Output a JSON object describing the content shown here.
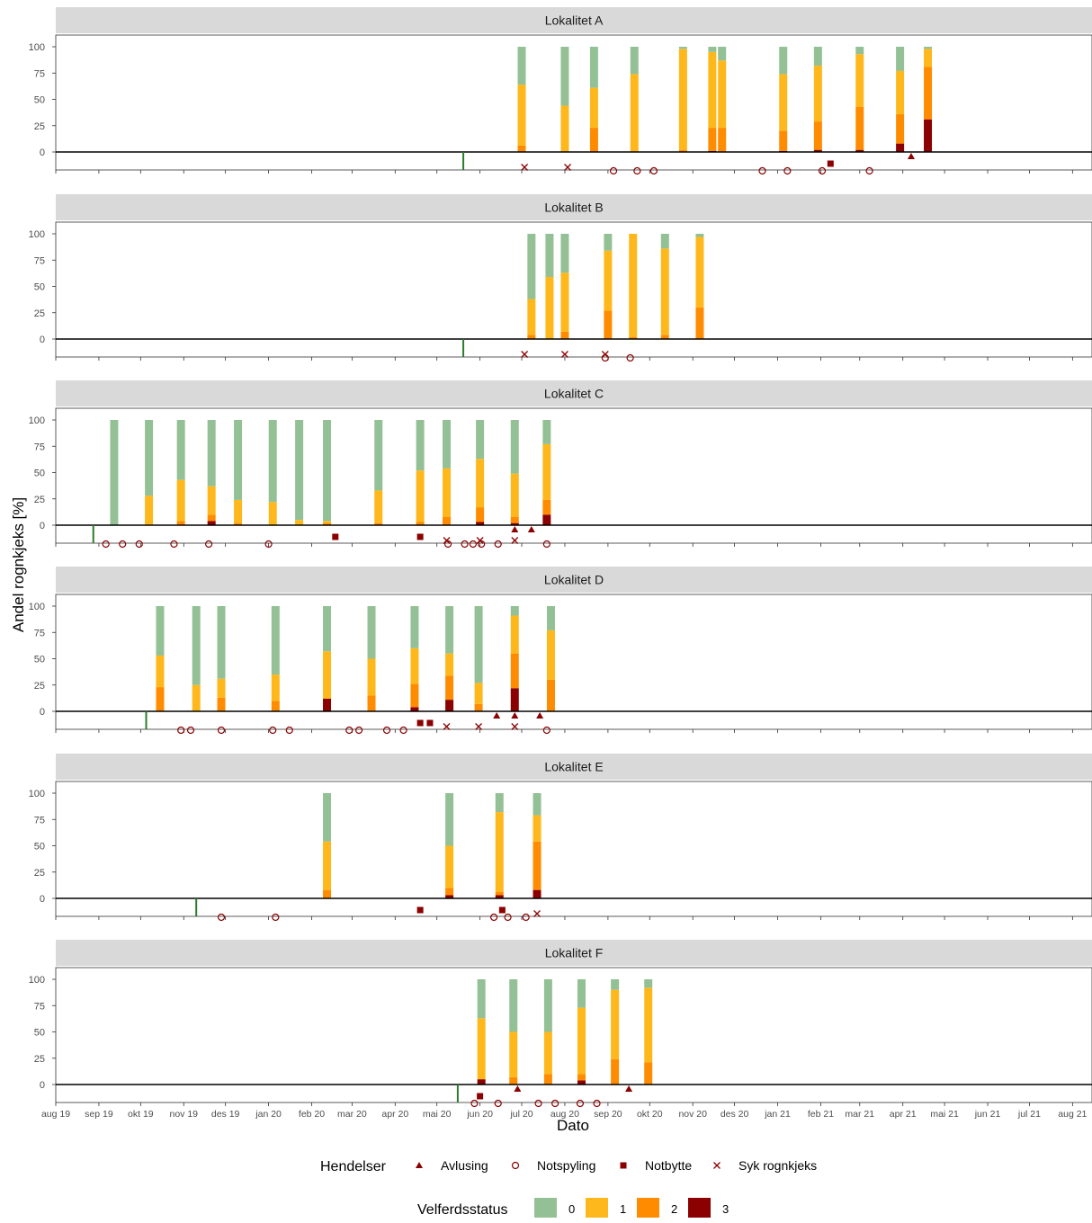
{
  "chart_data": {
    "type": "bar",
    "stacked": true,
    "xlabel": "Dato",
    "ylabel": "Andel rognkjeks [%]",
    "ylim": [
      0,
      100
    ],
    "yticks": [
      0,
      25,
      50,
      75,
      100
    ],
    "xlim": [
      "2019-08-01",
      "2021-08-15"
    ],
    "xtick_labels": [
      "aug 19",
      "sep 19",
      "okt 19",
      "nov 19",
      "des 19",
      "jan 20",
      "feb 20",
      "mar 20",
      "apr 20",
      "mai 20",
      "jun 20",
      "jul 20",
      "aug 20",
      "sep 20",
      "okt 20",
      "nov 20",
      "des 20",
      "jan 21",
      "feb 21",
      "mar 21",
      "apr 21",
      "mai 21",
      "jun 21",
      "jul 21",
      "aug 21"
    ],
    "xtick_dates": [
      "2019-08-01",
      "2019-09-01",
      "2019-10-01",
      "2019-11-01",
      "2019-12-01",
      "2020-01-01",
      "2020-02-01",
      "2020-03-01",
      "2020-04-01",
      "2020-05-01",
      "2020-06-01",
      "2020-07-01",
      "2020-08-01",
      "2020-09-01",
      "2020-10-01",
      "2020-11-01",
      "2020-12-01",
      "2021-01-01",
      "2021-02-01",
      "2021-03-01",
      "2021-04-01",
      "2021-05-01",
      "2021-06-01",
      "2021-07-01",
      "2021-08-01"
    ],
    "status_colors": {
      "0": "#93c195",
      "1": "#ffb81c",
      "2": "#ff8c00",
      "3": "#8b0000"
    },
    "event_color": "#8b0000",
    "start_line_color": "#2a7d2a",
    "legend_events": {
      "title": "Hendelser",
      "items": [
        {
          "key": "avlusing",
          "label": "Avlusing",
          "shape": "triangle"
        },
        {
          "key": "notspyling",
          "label": "Notspyling",
          "shape": "circle"
        },
        {
          "key": "notbytte",
          "label": "Notbytte",
          "shape": "square"
        },
        {
          "key": "syk",
          "label": "Syk rognkjeks",
          "shape": "cross"
        }
      ]
    },
    "legend_status": {
      "title": "Velferdsstatus",
      "items": [
        {
          "key": "0",
          "label": "0"
        },
        {
          "key": "1",
          "label": "1"
        },
        {
          "key": "2",
          "label": "2"
        },
        {
          "key": "3",
          "label": "3"
        }
      ]
    },
    "panels": [
      {
        "title": "Lokalitet A",
        "start": "2020-05-20",
        "bars": [
          {
            "date": "2020-07-01",
            "s0": 36,
            "s1": 58,
            "s2": 6,
            "s3": 0
          },
          {
            "date": "2020-08-01",
            "s0": 56,
            "s1": 44,
            "s2": 0,
            "s3": 0
          },
          {
            "date": "2020-08-22",
            "s0": 39,
            "s1": 38,
            "s2": 23,
            "s3": 0
          },
          {
            "date": "2020-09-20",
            "s0": 26,
            "s1": 74,
            "s2": 0,
            "s3": 0
          },
          {
            "date": "2020-10-25",
            "s0": 2,
            "s1": 96,
            "s2": 2,
            "s3": 0
          },
          {
            "date": "2020-11-15",
            "s0": 5,
            "s1": 72,
            "s2": 22,
            "s3": 1
          },
          {
            "date": "2020-11-22",
            "s0": 13,
            "s1": 64,
            "s2": 23,
            "s3": 0
          },
          {
            "date": "2021-01-05",
            "s0": 26,
            "s1": 54,
            "s2": 19,
            "s3": 1
          },
          {
            "date": "2021-01-30",
            "s0": 18,
            "s1": 53,
            "s2": 27,
            "s3": 2
          },
          {
            "date": "2021-03-01",
            "s0": 7,
            "s1": 50,
            "s2": 41,
            "s3": 2
          },
          {
            "date": "2021-03-30",
            "s0": 23,
            "s1": 41,
            "s2": 28,
            "s3": 8
          },
          {
            "date": "2021-04-19",
            "s0": 2,
            "s1": 17,
            "s2": 50,
            "s3": 31
          }
        ],
        "events": {
          "avlusing": [
            "2021-04-07"
          ],
          "notspyling": [
            "2020-09-05",
            "2020-09-22",
            "2020-10-04",
            "2020-12-21",
            "2021-01-08",
            "2021-02-02",
            "2021-03-08"
          ],
          "notbytte": [
            "2021-02-08"
          ],
          "syk": [
            "2020-07-03",
            "2020-08-03"
          ]
        }
      },
      {
        "title": "Lokalitet B",
        "start": "2020-05-20",
        "bars": [
          {
            "date": "2020-07-08",
            "s0": 62,
            "s1": 34,
            "s2": 4,
            "s3": 0
          },
          {
            "date": "2020-07-21",
            "s0": 41,
            "s1": 59,
            "s2": 0,
            "s3": 0
          },
          {
            "date": "2020-08-01",
            "s0": 37,
            "s1": 56,
            "s2": 7,
            "s3": 0
          },
          {
            "date": "2020-09-01",
            "s0": 16,
            "s1": 57,
            "s2": 27,
            "s3": 0
          },
          {
            "date": "2020-09-19",
            "s0": 0,
            "s1": 98,
            "s2": 2,
            "s3": 0
          },
          {
            "date": "2020-10-12",
            "s0": 14,
            "s1": 82,
            "s2": 4,
            "s3": 0
          },
          {
            "date": "2020-11-06",
            "s0": 3,
            "s1": 67,
            "s2": 30,
            "s3": 0
          }
        ],
        "events": {
          "avlusing": [],
          "notspyling": [
            "2020-08-30",
            "2020-09-17"
          ],
          "notbytte": [],
          "syk": [
            "2020-07-03",
            "2020-08-01",
            "2020-08-30"
          ]
        }
      },
      {
        "title": "Lokalitet C",
        "start": "2019-08-28",
        "bars": [
          {
            "date": "2019-09-12",
            "s0": 100,
            "s1": 0,
            "s2": 0,
            "s3": 0
          },
          {
            "date": "2019-10-07",
            "s0": 72,
            "s1": 28,
            "s2": 0,
            "s3": 0
          },
          {
            "date": "2019-10-30",
            "s0": 57,
            "s1": 39,
            "s2": 4,
            "s3": 0
          },
          {
            "date": "2019-11-21",
            "s0": 63,
            "s1": 27,
            "s2": 6,
            "s3": 4
          },
          {
            "date": "2019-12-10",
            "s0": 76,
            "s1": 22,
            "s2": 2,
            "s3": 0
          },
          {
            "date": "2020-01-04",
            "s0": 78,
            "s1": 22,
            "s2": 0,
            "s3": 0
          },
          {
            "date": "2020-01-23",
            "s0": 95,
            "s1": 5,
            "s2": 0,
            "s3": 0
          },
          {
            "date": "2020-02-12",
            "s0": 96,
            "s1": 2,
            "s2": 2,
            "s3": 0
          },
          {
            "date": "2020-03-20",
            "s0": 67,
            "s1": 31,
            "s2": 2,
            "s3": 0
          },
          {
            "date": "2020-04-19",
            "s0": 48,
            "s1": 49,
            "s2": 3,
            "s3": 0
          },
          {
            "date": "2020-05-08",
            "s0": 46,
            "s1": 46,
            "s2": 8,
            "s3": 0
          },
          {
            "date": "2020-06-01",
            "s0": 37,
            "s1": 46,
            "s2": 14,
            "s3": 3
          },
          {
            "date": "2020-06-26",
            "s0": 51,
            "s1": 41,
            "s2": 6,
            "s3": 2
          },
          {
            "date": "2020-07-19",
            "s0": 23,
            "s1": 53,
            "s2": 14,
            "s3": 10
          }
        ],
        "events": {
          "avlusing": [
            "2020-06-26",
            "2020-07-08"
          ],
          "notspyling": [
            "2019-09-06",
            "2019-09-18",
            "2019-09-30",
            "2019-10-25",
            "2019-11-19",
            "2020-01-01",
            "2020-05-09",
            "2020-05-21",
            "2020-05-27",
            "2020-06-02",
            "2020-06-14",
            "2020-07-19"
          ],
          "notbytte": [
            "2020-02-18",
            "2020-04-19"
          ],
          "syk": [
            "2020-05-08",
            "2020-06-01",
            "2020-06-26"
          ]
        }
      },
      {
        "title": "Lokalitet D",
        "start": "2019-10-05",
        "bars": [
          {
            "date": "2019-10-15",
            "s0": 47,
            "s1": 30,
            "s2": 23,
            "s3": 0
          },
          {
            "date": "2019-11-10",
            "s0": 75,
            "s1": 25,
            "s2": 0,
            "s3": 0
          },
          {
            "date": "2019-11-28",
            "s0": 69,
            "s1": 18,
            "s2": 13,
            "s3": 0
          },
          {
            "date": "2020-01-06",
            "s0": 65,
            "s1": 25,
            "s2": 10,
            "s3": 0
          },
          {
            "date": "2020-02-12",
            "s0": 43,
            "s1": 45,
            "s2": 0,
            "s3": 12
          },
          {
            "date": "2020-03-15",
            "s0": 50,
            "s1": 35,
            "s2": 15,
            "s3": 0
          },
          {
            "date": "2020-04-15",
            "s0": 40,
            "s1": 34,
            "s2": 22,
            "s3": 4
          },
          {
            "date": "2020-05-10",
            "s0": 45,
            "s1": 21,
            "s2": 23,
            "s3": 11
          },
          {
            "date": "2020-05-31",
            "s0": 73,
            "s1": 20,
            "s2": 7,
            "s3": 0
          },
          {
            "date": "2020-06-26",
            "s0": 9,
            "s1": 36,
            "s2": 33,
            "s3": 22
          },
          {
            "date": "2020-07-22",
            "s0": 23,
            "s1": 47,
            "s2": 30,
            "s3": 0
          }
        ],
        "events": {
          "avlusing": [
            "2020-06-13",
            "2020-06-26",
            "2020-07-14"
          ],
          "notspyling": [
            "2019-10-30",
            "2019-11-06",
            "2019-11-28",
            "2020-01-04",
            "2020-01-16",
            "2020-02-28",
            "2020-03-06",
            "2020-03-26",
            "2020-04-07",
            "2020-07-19"
          ],
          "notbytte": [
            "2020-04-19",
            "2020-04-26"
          ],
          "syk": [
            "2020-05-08",
            "2020-05-31",
            "2020-06-26"
          ]
        }
      },
      {
        "title": "Lokalitet E",
        "start": "2019-11-10",
        "bars": [
          {
            "date": "2020-02-12",
            "s0": 46,
            "s1": 46,
            "s2": 8,
            "s3": 0
          },
          {
            "date": "2020-05-10",
            "s0": 50,
            "s1": 40,
            "s2": 7,
            "s3": 3
          },
          {
            "date": "2020-06-15",
            "s0": 18,
            "s1": 76,
            "s2": 3,
            "s3": 3
          },
          {
            "date": "2020-07-12",
            "s0": 21,
            "s1": 25,
            "s2": 46,
            "s3": 8
          }
        ],
        "events": {
          "avlusing": [],
          "notspyling": [
            "2019-11-28",
            "2020-01-06",
            "2020-06-11",
            "2020-06-21",
            "2020-07-04"
          ],
          "notbytte": [
            "2020-04-19",
            "2020-06-17"
          ],
          "syk": [
            "2020-07-12"
          ]
        }
      },
      {
        "title": "Lokalitet F",
        "start": "2020-05-16",
        "bars": [
          {
            "date": "2020-06-02",
            "s0": 37,
            "s1": 58,
            "s2": 0,
            "s3": 5
          },
          {
            "date": "2020-06-25",
            "s0": 50,
            "s1": 43,
            "s2": 7,
            "s3": 0
          },
          {
            "date": "2020-07-20",
            "s0": 50,
            "s1": 40,
            "s2": 10,
            "s3": 0
          },
          {
            "date": "2020-08-13",
            "s0": 27,
            "s1": 63,
            "s2": 6,
            "s3": 4
          },
          {
            "date": "2020-09-06",
            "s0": 10,
            "s1": 66,
            "s2": 24,
            "s3": 0
          },
          {
            "date": "2020-09-30",
            "s0": 8,
            "s1": 71,
            "s2": 21,
            "s3": 0
          }
        ],
        "events": {
          "avlusing": [
            "2020-06-28",
            "2020-09-16"
          ],
          "notspyling": [
            "2020-05-28",
            "2020-06-14",
            "2020-07-13",
            "2020-07-25",
            "2020-08-12",
            "2020-08-24"
          ],
          "notbytte": [
            "2020-06-01"
          ],
          "syk": []
        }
      }
    ]
  }
}
